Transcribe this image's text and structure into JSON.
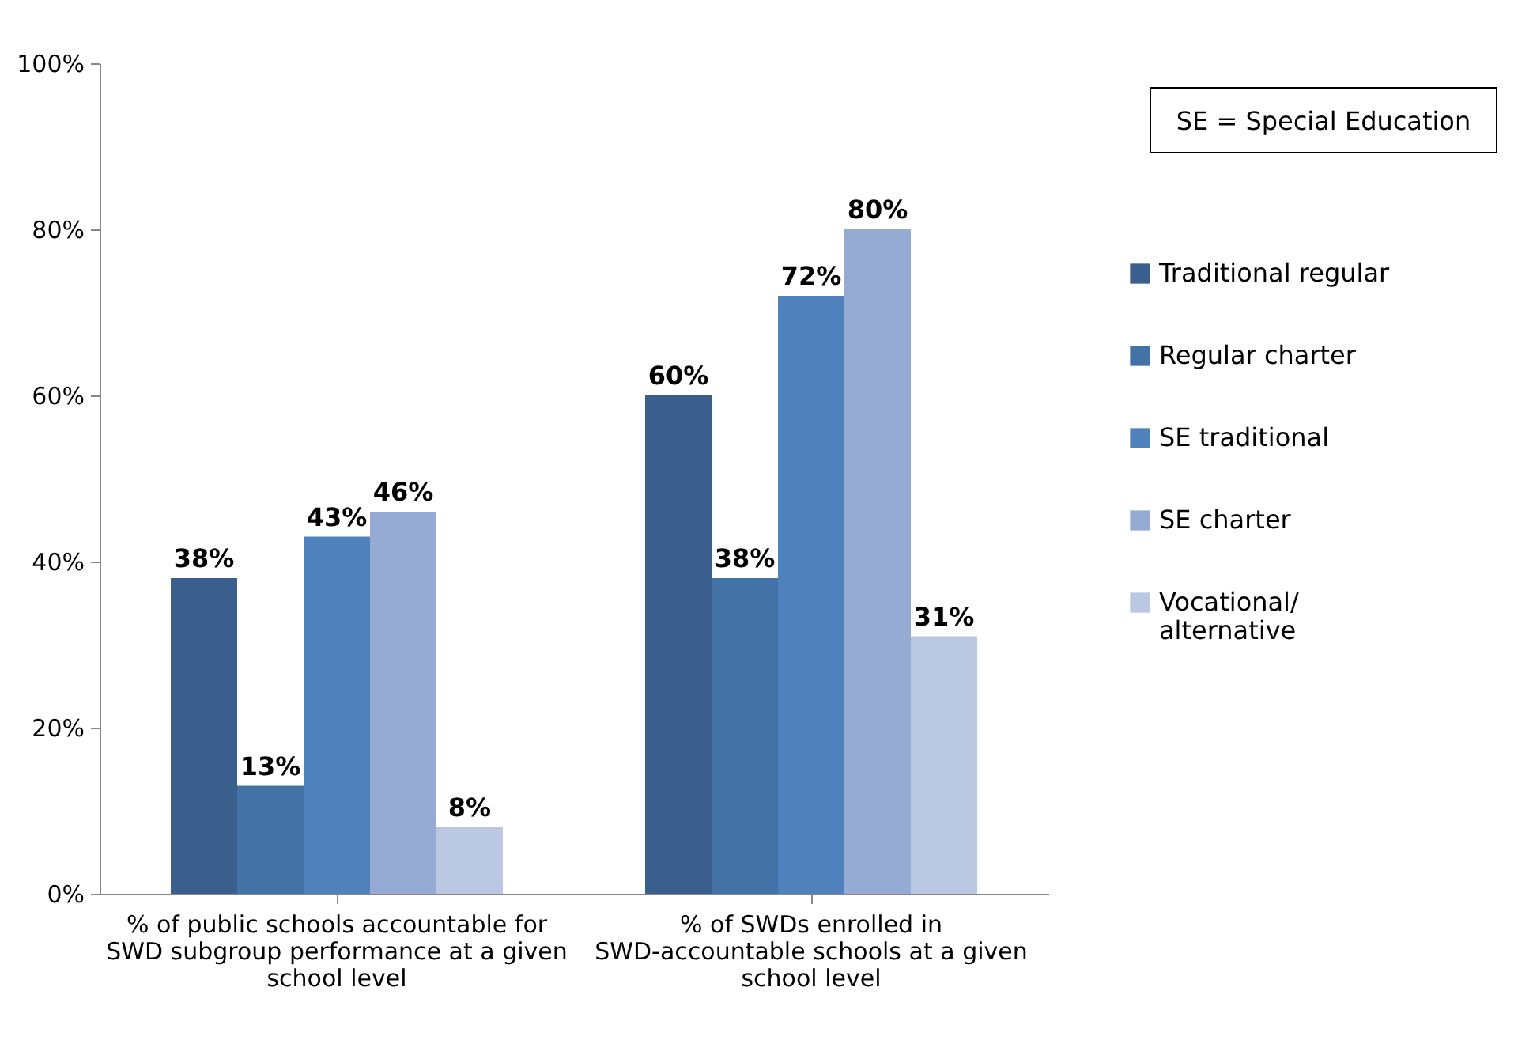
{
  "chart_data": {
    "type": "bar",
    "categories": [
      "% of public schools accountable for SWD subgroup performance at a given school level",
      "% of SWDs enrolled in SWD-accountable schools at a given school level"
    ],
    "series": [
      {
        "name": "Traditional regular",
        "color": "#3b5f8c",
        "values": [
          38,
          60
        ],
        "value_labels": [
          "38%",
          "60%"
        ]
      },
      {
        "name": "Regular charter",
        "color": "#4372a6",
        "values": [
          13,
          38
        ],
        "value_labels": [
          "13%",
          "38%"
        ]
      },
      {
        "name": "SE traditional",
        "color": "#4f81bd",
        "values": [
          43,
          72
        ],
        "value_labels": [
          "43%",
          "72%"
        ]
      },
      {
        "name": "SE charter",
        "color": "#95abd4",
        "values": [
          46,
          80
        ],
        "value_labels": [
          "46%",
          "80%"
        ]
      },
      {
        "name": "Vocational/ alternative",
        "color": "#bac8e1",
        "values": [
          8,
          31
        ],
        "value_labels": [
          "8%",
          "31%"
        ]
      }
    ],
    "ylim": [
      0,
      100
    ],
    "yticks": [
      {
        "value": 0,
        "label": "0%"
      },
      {
        "value": 20,
        "label": "20%"
      },
      {
        "value": 40,
        "label": "40%"
      },
      {
        "value": 60,
        "label": "60%"
      },
      {
        "value": 80,
        "label": "80%"
      },
      {
        "value": 100,
        "label": "100%"
      }
    ],
    "grid": false,
    "legend": "right",
    "annotations": [
      "SE = Special Education"
    ]
  }
}
